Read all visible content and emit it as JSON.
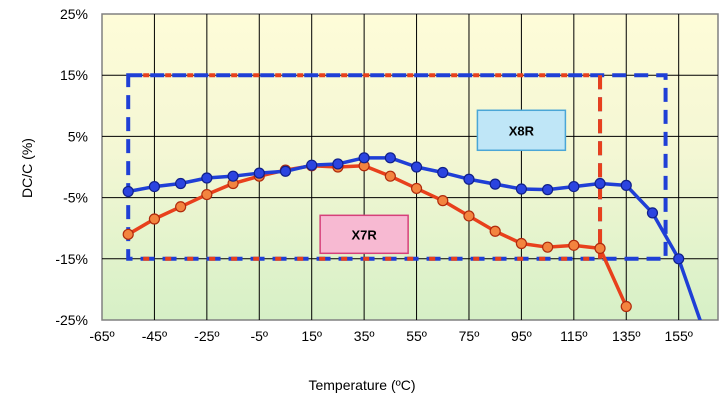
{
  "chart_data": {
    "type": "line",
    "xlabel": "Temperature (ºC)",
    "ylabel": "DC/C (%)",
    "xlim": [
      -65,
      170
    ],
    "ylim": [
      -25,
      25
    ],
    "x_ticks": [
      -65,
      -45,
      -25,
      -5,
      15,
      35,
      55,
      75,
      95,
      115,
      135,
      155
    ],
    "x_tick_labels": [
      "-65º",
      "-45º",
      "-25º",
      "-5º",
      "15º",
      "35º",
      "55º",
      "75º",
      "95º",
      "115º",
      "135º",
      "155º"
    ],
    "y_ticks": [
      -25,
      -15,
      -5,
      5,
      15,
      25
    ],
    "y_tick_labels": [
      "-25%",
      "-15%",
      "-5%",
      "5%",
      "15%",
      "25%"
    ],
    "grid": true,
    "background": "gradient-yellow-to-green",
    "series": [
      {
        "name": "X8R",
        "color": "#1f3fd6",
        "x": [
          -55,
          -45,
          -35,
          -25,
          -15,
          -5,
          5,
          15,
          25,
          35,
          45,
          55,
          65,
          75,
          85,
          95,
          105,
          115,
          125,
          135,
          145,
          155,
          166
        ],
        "y": [
          -4,
          -3.2,
          -2.7,
          -1.8,
          -1.5,
          -1,
          -0.7,
          0.3,
          0.5,
          1.5,
          1.5,
          0,
          -0.9,
          -2,
          -2.8,
          -3.6,
          -3.7,
          -3.2,
          -2.7,
          -3,
          -7.5,
          -15,
          -28.5
        ]
      },
      {
        "name": "X7R",
        "color": "#e8401c",
        "x": [
          -55,
          -45,
          -35,
          -25,
          -15,
          -5,
          5,
          15,
          25,
          35,
          45,
          55,
          65,
          75,
          85,
          95,
          105,
          115,
          125,
          135
        ],
        "y": [
          -11,
          -8.5,
          -6.5,
          -4.5,
          -2.7,
          -1.5,
          -0.5,
          0.2,
          0,
          0.2,
          -1.5,
          -3.5,
          -5.5,
          -8,
          -10.5,
          -12.5,
          -13.1,
          -12.8,
          -13.3,
          -22.8
        ]
      }
    ],
    "spec_boxes": [
      {
        "name": "X8R",
        "x_range": [
          -55,
          150
        ],
        "y_range": [
          -15,
          15
        ]
      },
      {
        "name": "X7R",
        "x_range": [
          -55,
          125
        ],
        "y_range": [
          -15,
          15
        ]
      }
    ],
    "callouts": [
      {
        "label": "X8R",
        "at": [
          95,
          6
        ]
      },
      {
        "label": "X7R",
        "at": [
          35,
          -11
        ]
      }
    ]
  }
}
